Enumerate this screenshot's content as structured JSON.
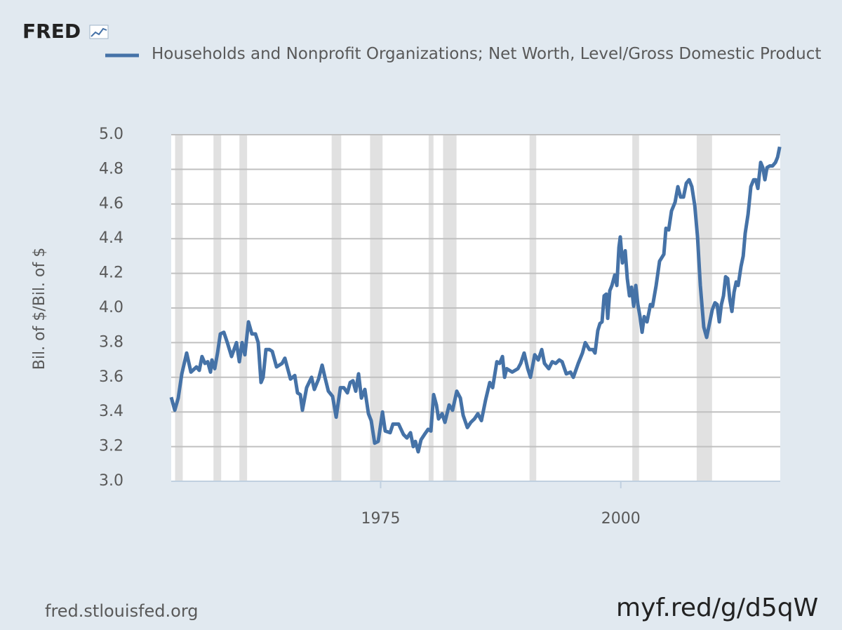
{
  "chart_data": {
    "type": "line",
    "logo": "FRED",
    "y_label": "Bil. of $/Bil. of $",
    "source": "fred.stlouisfed.org",
    "short_url": "myf.red/g/d5qW",
    "xlim": [
      1953.2,
      2016.6
    ],
    "xticks": [
      1975,
      2000
    ],
    "ylim": [
      3.0,
      5.0
    ],
    "yticks": [
      {
        "value": 3.0,
        "label": "3.0"
      },
      {
        "value": 3.2,
        "label": "3.2"
      },
      {
        "value": 3.4,
        "label": "3.4"
      },
      {
        "value": 3.6,
        "label": "3.6"
      },
      {
        "value": 3.8,
        "label": "3.8"
      },
      {
        "value": 4.0,
        "label": "4.0"
      },
      {
        "value": 4.2,
        "label": "4.2"
      },
      {
        "value": 4.4,
        "label": "4.4"
      },
      {
        "value": 4.6,
        "label": "4.6"
      },
      {
        "value": 4.8,
        "label": "4.8"
      },
      {
        "value": 5.0,
        "label": "5.0"
      }
    ],
    "grid": true,
    "recessions": [
      [
        1953.6,
        1954.4
      ],
      [
        1957.6,
        1958.4
      ],
      [
        1960.3,
        1961.1
      ],
      [
        1969.9,
        1970.9
      ],
      [
        1973.9,
        1975.2
      ],
      [
        1980.0,
        1980.5
      ],
      [
        1981.5,
        1982.9
      ],
      [
        1990.5,
        1991.2
      ],
      [
        2001.2,
        2001.9
      ],
      [
        2007.9,
        2009.5
      ]
    ],
    "recession_color": "#e1e1e1",
    "x": [
      1953.2,
      1953.57,
      1953.93,
      1954.3,
      1954.81,
      1955.25,
      1955.83,
      1956.12,
      1956.41,
      1956.71,
      1957.0,
      1957.29,
      1957.44,
      1957.73,
      1958.02,
      1958.31,
      1958.68,
      1959.04,
      1959.48,
      1959.99,
      1960.29,
      1960.58,
      1960.87,
      1961.24,
      1961.6,
      1961.97,
      1962.26,
      1962.55,
      1962.77,
      1963.06,
      1963.43,
      1963.72,
      1964.16,
      1964.74,
      1965.03,
      1965.62,
      1966.06,
      1966.35,
      1966.64,
      1966.86,
      1967.3,
      1967.81,
      1968.1,
      1968.54,
      1968.91,
      1969.2,
      1969.56,
      1970.0,
      1970.37,
      1970.81,
      1971.17,
      1971.54,
      1971.83,
      1972.12,
      1972.41,
      1972.7,
      1973.0,
      1973.36,
      1973.73,
      1974.02,
      1974.38,
      1974.75,
      1975.19,
      1975.48,
      1975.99,
      1976.28,
      1976.87,
      1977.38,
      1977.74,
      1978.11,
      1978.4,
      1978.62,
      1978.91,
      1979.21,
      1979.57,
      1979.94,
      1980.23,
      1980.52,
      1980.81,
      1981.03,
      1981.4,
      1981.69,
      1982.13,
      1982.49,
      1982.93,
      1983.3,
      1983.59,
      1984.03,
      1984.39,
      1984.76,
      1985.12,
      1985.49,
      1985.93,
      1986.36,
      1986.66,
      1987.1,
      1987.39,
      1987.68,
      1987.9,
      1988.12,
      1988.7,
      1989.29,
      1989.58,
      1989.94,
      1990.31,
      1990.6,
      1991.04,
      1991.41,
      1991.77,
      1992.06,
      1992.5,
      1992.87,
      1993.23,
      1993.6,
      1993.89,
      1994.33,
      1994.77,
      1995.06,
      1995.57,
      1996.01,
      1996.3,
      1996.74,
      1997.1,
      1997.32,
      1997.61,
      1997.83,
      1998.05,
      1998.27,
      1998.49,
      1998.64,
      1998.86,
      1999.08,
      1999.37,
      1999.59,
      1999.81,
      1999.95,
      2000.17,
      2000.46,
      2000.68,
      2000.9,
      2001.12,
      2001.34,
      2001.56,
      2001.78,
      2002.0,
      2002.22,
      2002.44,
      2002.73,
      2003.09,
      2003.31,
      2003.68,
      2004.04,
      2004.48,
      2004.7,
      2004.99,
      2005.28,
      2005.65,
      2005.94,
      2006.23,
      2006.53,
      2006.82,
      2007.11,
      2007.4,
      2007.7,
      2007.99,
      2008.28,
      2008.64,
      2008.94,
      2009.23,
      2009.52,
      2009.81,
      2010.03,
      2010.25,
      2010.47,
      2010.69,
      2010.91,
      2011.13,
      2011.35,
      2011.57,
      2011.79,
      2012.01,
      2012.22,
      2012.52,
      2012.74,
      2012.95,
      2013.25,
      2013.54,
      2013.83,
      2014.05,
      2014.27,
      2014.56,
      2014.78,
      2015.0,
      2015.22,
      2015.51,
      2015.8,
      2016.1,
      2016.32,
      2016.54
    ],
    "series": [
      {
        "name": "Households and Nonprofit Organizations; Net Worth, Level/Gross Domestic Product",
        "color": "#4572a7",
        "values": [
          3.485,
          3.41,
          3.48,
          3.62,
          3.74,
          3.63,
          3.66,
          3.64,
          3.72,
          3.68,
          3.69,
          3.63,
          3.7,
          3.65,
          3.74,
          3.85,
          3.86,
          3.8,
          3.72,
          3.8,
          3.69,
          3.8,
          3.73,
          3.92,
          3.85,
          3.85,
          3.8,
          3.57,
          3.6,
          3.76,
          3.76,
          3.75,
          3.66,
          3.68,
          3.71,
          3.59,
          3.61,
          3.51,
          3.5,
          3.41,
          3.54,
          3.6,
          3.53,
          3.59,
          3.67,
          3.6,
          3.52,
          3.49,
          3.37,
          3.54,
          3.54,
          3.51,
          3.57,
          3.58,
          3.52,
          3.62,
          3.48,
          3.53,
          3.39,
          3.35,
          3.22,
          3.23,
          3.4,
          3.29,
          3.28,
          3.33,
          3.33,
          3.27,
          3.25,
          3.28,
          3.2,
          3.23,
          3.17,
          3.24,
          3.27,
          3.3,
          3.29,
          3.5,
          3.44,
          3.36,
          3.39,
          3.34,
          3.44,
          3.41,
          3.52,
          3.48,
          3.38,
          3.31,
          3.34,
          3.36,
          3.39,
          3.35,
          3.47,
          3.57,
          3.54,
          3.69,
          3.68,
          3.72,
          3.6,
          3.65,
          3.63,
          3.65,
          3.68,
          3.74,
          3.65,
          3.6,
          3.73,
          3.7,
          3.76,
          3.68,
          3.65,
          3.69,
          3.68,
          3.7,
          3.69,
          3.62,
          3.63,
          3.6,
          3.68,
          3.74,
          3.8,
          3.76,
          3.76,
          3.74,
          3.87,
          3.91,
          3.92,
          4.07,
          4.08,
          3.94,
          4.1,
          4.13,
          4.19,
          4.13,
          4.35,
          4.41,
          4.26,
          4.33,
          4.17,
          4.07,
          4.12,
          4.01,
          4.13,
          4.02,
          3.95,
          3.86,
          3.95,
          3.92,
          4.02,
          4.01,
          4.13,
          4.27,
          4.31,
          4.46,
          4.45,
          4.56,
          4.61,
          4.7,
          4.64,
          4.64,
          4.72,
          4.74,
          4.7,
          4.59,
          4.41,
          4.13,
          3.89,
          3.83,
          3.91,
          3.99,
          4.03,
          4.02,
          3.92,
          4.02,
          4.07,
          4.18,
          4.17,
          4.05,
          3.98,
          4.09,
          4.15,
          4.13,
          4.24,
          4.3,
          4.43,
          4.54,
          4.7,
          4.74,
          4.74,
          4.69,
          4.84,
          4.81,
          4.74,
          4.81,
          4.82,
          4.82,
          4.84,
          4.87,
          4.93
        ]
      }
    ]
  }
}
